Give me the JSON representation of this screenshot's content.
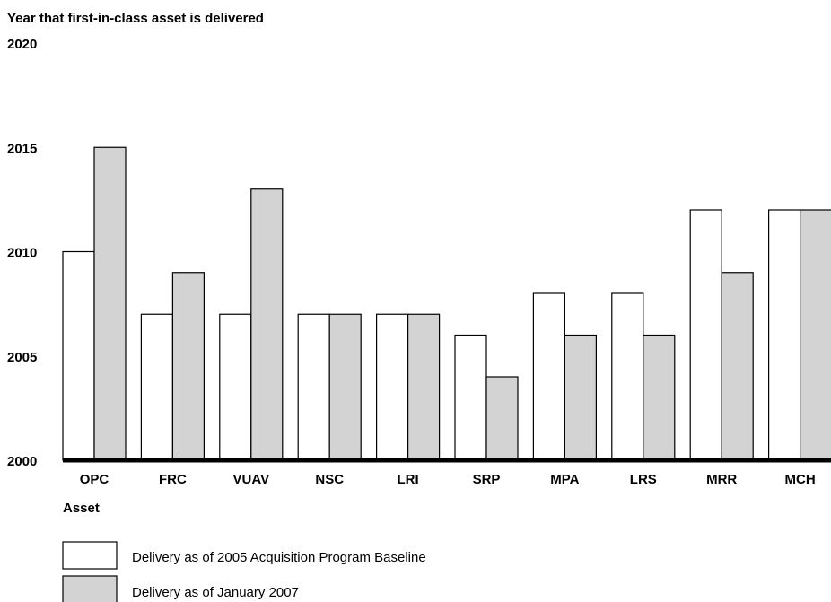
{
  "chart_data": {
    "type": "bar",
    "title": "Year that first-in-class asset is delivered",
    "xlabel": "Asset",
    "ylabel": "",
    "ylim": [
      2000,
      2020
    ],
    "yticks": [
      2000,
      2005,
      2010,
      2015,
      2020
    ],
    "categories": [
      "OPC",
      "FRC",
      "VUAV",
      "NSC",
      "LRI",
      "SRP",
      "MPA",
      "LRS",
      "MRR",
      "MCH"
    ],
    "series": [
      {
        "name": "Delivery as of 2005 Acquisition Program Baseline",
        "color": "#ffffff",
        "values": [
          2010,
          2007,
          2007,
          2007,
          2007,
          2006,
          2008,
          2008,
          2012,
          2012
        ]
      },
      {
        "name": "Delivery as of January 2007",
        "color": "#d3d3d3",
        "values": [
          2015,
          2009,
          2013,
          2007,
          2007,
          2004,
          2006,
          2006,
          2009,
          2012
        ]
      }
    ],
    "grid": false,
    "legend": "bottom-left"
  }
}
